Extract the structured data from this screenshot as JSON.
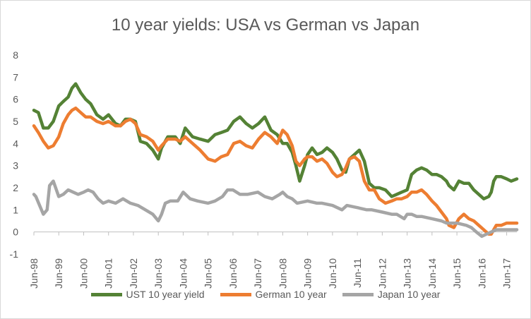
{
  "chart_data": {
    "type": "line",
    "title": "10 year yields: USA vs German vs Japan",
    "xlabel": "",
    "ylabel": "",
    "ylim": [
      -1,
      8
    ],
    "yticks": [
      -1,
      0,
      1,
      2,
      3,
      4,
      5,
      6,
      7,
      8
    ],
    "xlim": [
      1998.42,
      2017.83
    ],
    "x_ticks": [
      {
        "x": 1998.42,
        "label": "Jun-98"
      },
      {
        "x": 1999.42,
        "label": "Jun-99"
      },
      {
        "x": 2000.42,
        "label": "Jun-00"
      },
      {
        "x": 2001.42,
        "label": "Jun-01"
      },
      {
        "x": 2002.42,
        "label": "Jun-02"
      },
      {
        "x": 2003.42,
        "label": "Jun-03"
      },
      {
        "x": 2004.42,
        "label": "Jun-04"
      },
      {
        "x": 2005.42,
        "label": "Jun-05"
      },
      {
        "x": 2006.42,
        "label": "Jun-06"
      },
      {
        "x": 2007.42,
        "label": "Jun-07"
      },
      {
        "x": 2008.42,
        "label": "Jun-08"
      },
      {
        "x": 2009.42,
        "label": "Jun-09"
      },
      {
        "x": 2010.42,
        "label": "Jun-10"
      },
      {
        "x": 2011.42,
        "label": "Jun-11"
      },
      {
        "x": 2012.42,
        "label": "Jun-12"
      },
      {
        "x": 2013.42,
        "label": "Jun-13"
      },
      {
        "x": 2014.42,
        "label": "Jun-14"
      },
      {
        "x": 2015.42,
        "label": "Jun-15"
      },
      {
        "x": 2016.42,
        "label": "Jun-16"
      },
      {
        "x": 2017.42,
        "label": "Jun-17"
      }
    ],
    "grid": false,
    "legend_position": "bottom",
    "series": [
      {
        "name": "UST 10 year yield",
        "color": "#548235",
        "x": [
          1998.42,
          1998.6,
          1998.8,
          1999.0,
          1999.2,
          1999.42,
          1999.6,
          1999.8,
          1999.95,
          2000.1,
          2000.3,
          2000.5,
          2000.7,
          2000.95,
          2001.2,
          2001.42,
          2001.7,
          2001.9,
          2002.1,
          2002.3,
          2002.5,
          2002.7,
          2002.95,
          2003.2,
          2003.42,
          2003.55,
          2003.8,
          2004.1,
          2004.3,
          2004.5,
          2004.8,
          2005.1,
          2005.42,
          2005.7,
          2005.95,
          2006.2,
          2006.45,
          2006.7,
          2006.95,
          2007.2,
          2007.45,
          2007.7,
          2007.95,
          2008.2,
          2008.42,
          2008.6,
          2008.8,
          2008.95,
          2009.1,
          2009.3,
          2009.42,
          2009.6,
          2009.8,
          2010.0,
          2010.2,
          2010.42,
          2010.6,
          2010.8,
          2010.95,
          2011.1,
          2011.3,
          2011.5,
          2011.7,
          2011.9,
          2012.1,
          2012.3,
          2012.55,
          2012.8,
          2013.0,
          2013.2,
          2013.42,
          2013.6,
          2013.8,
          2014.0,
          2014.2,
          2014.42,
          2014.6,
          2014.8,
          2015.0,
          2015.1,
          2015.3,
          2015.5,
          2015.7,
          2015.9,
          2016.1,
          2016.3,
          2016.5,
          2016.7,
          2016.8,
          2016.9,
          2017.0,
          2017.2,
          2017.42,
          2017.6,
          2017.83
        ],
        "values": [
          5.5,
          5.4,
          4.7,
          4.7,
          5.0,
          5.7,
          5.9,
          6.1,
          6.5,
          6.7,
          6.3,
          6.0,
          5.8,
          5.3,
          5.1,
          5.3,
          4.9,
          4.8,
          5.1,
          5.1,
          5.0,
          4.1,
          4.0,
          3.7,
          3.3,
          3.8,
          4.3,
          4.3,
          4.0,
          4.7,
          4.3,
          4.2,
          4.1,
          4.4,
          4.5,
          4.6,
          5.0,
          5.2,
          4.9,
          4.7,
          4.9,
          5.2,
          4.6,
          4.4,
          4.0,
          4.0,
          3.6,
          3.0,
          2.3,
          3.0,
          3.5,
          3.8,
          3.5,
          3.6,
          3.8,
          3.6,
          3.3,
          2.8,
          2.7,
          3.3,
          3.5,
          3.7,
          3.2,
          2.2,
          2.0,
          2.0,
          1.9,
          1.6,
          1.7,
          1.8,
          1.9,
          2.6,
          2.8,
          2.9,
          2.8,
          2.6,
          2.6,
          2.5,
          2.3,
          2.1,
          1.9,
          2.3,
          2.2,
          2.2,
          1.9,
          1.7,
          1.5,
          1.6,
          1.8,
          2.3,
          2.5,
          2.5,
          2.4,
          2.3,
          2.4
        ]
      },
      {
        "name": "German 10 year",
        "color": "#ed7d31",
        "x": [
          1998.42,
          1998.6,
          1998.8,
          1999.0,
          1999.2,
          1999.42,
          1999.6,
          1999.8,
          1999.95,
          2000.1,
          2000.3,
          2000.5,
          2000.7,
          2000.95,
          2001.2,
          2001.42,
          2001.7,
          2001.9,
          2002.1,
          2002.3,
          2002.5,
          2002.7,
          2002.95,
          2003.2,
          2003.42,
          2003.55,
          2003.8,
          2004.1,
          2004.3,
          2004.5,
          2004.8,
          2005.1,
          2005.42,
          2005.7,
          2005.95,
          2006.2,
          2006.45,
          2006.7,
          2006.95,
          2007.2,
          2007.45,
          2007.7,
          2007.95,
          2008.2,
          2008.42,
          2008.6,
          2008.8,
          2008.95,
          2009.1,
          2009.3,
          2009.42,
          2009.6,
          2009.8,
          2010.0,
          2010.2,
          2010.42,
          2010.6,
          2010.8,
          2010.95,
          2011.1,
          2011.3,
          2011.5,
          2011.7,
          2011.9,
          2012.1,
          2012.3,
          2012.55,
          2012.8,
          2013.0,
          2013.2,
          2013.42,
          2013.6,
          2013.8,
          2014.0,
          2014.2,
          2014.42,
          2014.6,
          2014.8,
          2015.0,
          2015.1,
          2015.3,
          2015.5,
          2015.7,
          2015.9,
          2016.1,
          2016.3,
          2016.5,
          2016.7,
          2016.8,
          2016.9,
          2017.0,
          2017.2,
          2017.42,
          2017.6,
          2017.83
        ],
        "values": [
          4.8,
          4.5,
          4.1,
          3.8,
          3.9,
          4.3,
          4.9,
          5.3,
          5.5,
          5.6,
          5.4,
          5.2,
          5.2,
          5.0,
          4.9,
          5.0,
          4.8,
          4.8,
          5.0,
          5.1,
          4.9,
          4.4,
          4.3,
          4.1,
          3.7,
          3.9,
          4.2,
          4.2,
          4.1,
          4.3,
          4.0,
          3.7,
          3.3,
          3.2,
          3.4,
          3.5,
          4.0,
          4.1,
          3.9,
          3.8,
          4.2,
          4.5,
          4.3,
          4.0,
          4.6,
          4.4,
          3.9,
          3.2,
          3.0,
          3.3,
          3.4,
          3.4,
          3.2,
          3.3,
          3.1,
          2.7,
          2.5,
          2.6,
          2.9,
          3.3,
          3.4,
          3.2,
          2.3,
          1.9,
          1.9,
          1.5,
          1.3,
          1.4,
          1.5,
          1.5,
          1.6,
          1.8,
          1.8,
          1.9,
          1.7,
          1.4,
          1.2,
          0.9,
          0.6,
          0.3,
          0.2,
          0.6,
          0.8,
          0.6,
          0.5,
          0.3,
          0.1,
          -0.1,
          -0.1,
          0.1,
          0.3,
          0.3,
          0.4,
          0.4,
          0.4
        ]
      },
      {
        "name": "Japan 10 year",
        "color": "#a5a5a5",
        "x": [
          1998.42,
          1998.5,
          1998.65,
          1998.8,
          1998.95,
          1999.05,
          1999.2,
          1999.42,
          1999.6,
          1999.8,
          2000.0,
          2000.2,
          2000.42,
          2000.6,
          2000.8,
          2001.0,
          2001.2,
          2001.42,
          2001.7,
          2002.0,
          2002.3,
          2002.6,
          2002.9,
          2003.2,
          2003.42,
          2003.55,
          2003.7,
          2003.9,
          2004.2,
          2004.42,
          2004.7,
          2005.0,
          2005.42,
          2005.7,
          2006.0,
          2006.2,
          2006.42,
          2006.7,
          2007.0,
          2007.42,
          2007.7,
          2008.0,
          2008.3,
          2008.42,
          2008.6,
          2008.8,
          2009.0,
          2009.42,
          2009.8,
          2010.0,
          2010.42,
          2010.8,
          2011.0,
          2011.42,
          2011.8,
          2012.0,
          2012.42,
          2012.8,
          2013.0,
          2013.3,
          2013.42,
          2013.6,
          2013.8,
          2014.0,
          2014.42,
          2014.8,
          2015.0,
          2015.42,
          2015.8,
          2016.0,
          2016.2,
          2016.42,
          2016.6,
          2016.8,
          2017.0,
          2017.42,
          2017.83
        ],
        "values": [
          1.7,
          1.6,
          1.2,
          0.8,
          1.0,
          2.1,
          2.3,
          1.6,
          1.7,
          1.9,
          1.8,
          1.7,
          1.8,
          1.9,
          1.8,
          1.5,
          1.3,
          1.4,
          1.3,
          1.5,
          1.3,
          1.2,
          1.0,
          0.8,
          0.5,
          0.8,
          1.3,
          1.4,
          1.4,
          1.8,
          1.5,
          1.4,
          1.3,
          1.4,
          1.6,
          1.9,
          1.9,
          1.7,
          1.7,
          1.8,
          1.6,
          1.5,
          1.7,
          1.8,
          1.6,
          1.5,
          1.3,
          1.4,
          1.3,
          1.3,
          1.2,
          1.0,
          1.2,
          1.1,
          1.0,
          1.0,
          0.9,
          0.8,
          0.8,
          0.6,
          0.8,
          0.8,
          0.7,
          0.7,
          0.6,
          0.5,
          0.4,
          0.4,
          0.3,
          0.2,
          0.0,
          -0.2,
          -0.1,
          0.0,
          0.1,
          0.1,
          0.1
        ]
      }
    ]
  }
}
